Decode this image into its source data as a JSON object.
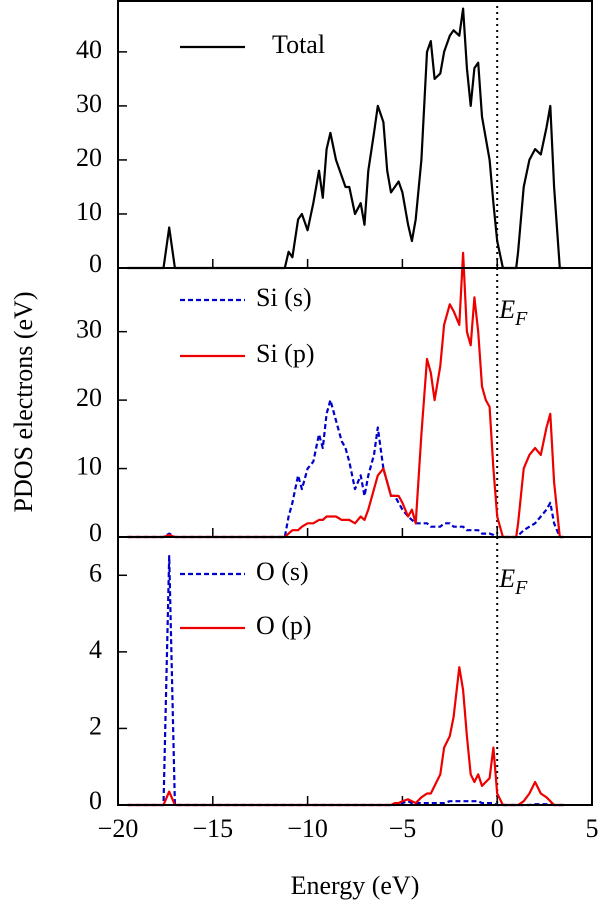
{
  "chart_data": [
    {
      "type": "line",
      "ylabel": "PDOS electrons (eV)",
      "vline": 0,
      "ylim": [
        0,
        49.6
      ],
      "yticks": [
        0,
        10,
        20,
        30,
        40
      ],
      "x": [
        -19.5,
        -17.6,
        -17.3,
        -17.0,
        -11.2,
        -11.0,
        -10.8,
        -10.5,
        -10.3,
        -10.0,
        -9.7,
        -9.4,
        -9.2,
        -9.0,
        -8.8,
        -8.5,
        -8.2,
        -8.0,
        -7.8,
        -7.5,
        -7.2,
        -7.0,
        -6.8,
        -6.5,
        -6.3,
        -6.0,
        -5.8,
        -5.6,
        -5.4,
        -5.2,
        -5.0,
        -4.7,
        -4.5,
        -4.3,
        -4.0,
        -3.7,
        -3.5,
        -3.3,
        -3.0,
        -2.8,
        -2.5,
        -2.3,
        -2.0,
        -1.8,
        -1.6,
        -1.4,
        -1.2,
        -1.0,
        -0.8,
        -0.6,
        -0.4,
        -0.2,
        0.0,
        0.3,
        1.0,
        1.1,
        1.4,
        1.7,
        2.0,
        2.3,
        2.6,
        2.8,
        3.0,
        3.3,
        3.5
      ],
      "series": [
        {
          "name": "Total",
          "color": "#000000",
          "linestyle": "solid",
          "values": [
            0,
            0,
            7.5,
            0,
            0,
            3,
            2,
            9,
            10,
            7,
            12,
            18,
            13,
            22,
            25,
            20,
            17,
            15,
            15,
            10,
            12,
            8,
            18,
            25,
            30,
            27,
            18,
            14,
            15,
            16,
            14,
            8,
            5,
            9,
            20,
            40,
            42,
            35,
            36,
            40,
            43,
            44,
            43,
            48,
            37,
            30,
            37,
            38,
            28,
            24,
            20,
            12,
            5,
            0,
            0,
            3,
            15,
            20,
            22,
            21,
            26,
            30,
            15,
            0,
            0
          ]
        }
      ]
    },
    {
      "type": "line",
      "vline": 0,
      "annotations": [
        {
          "text": "E",
          "subscript": "F"
        }
      ],
      "ylim": [
        0,
        39.3
      ],
      "yticks": [
        0,
        10,
        20,
        30
      ],
      "x": [
        -19.5,
        -17.6,
        -17.3,
        -17.0,
        -11.2,
        -11.0,
        -10.8,
        -10.5,
        -10.3,
        -10.0,
        -9.7,
        -9.4,
        -9.2,
        -9.0,
        -8.8,
        -8.5,
        -8.2,
        -8.0,
        -7.8,
        -7.5,
        -7.2,
        -7.0,
        -6.8,
        -6.5,
        -6.3,
        -6.0,
        -5.8,
        -5.6,
        -5.4,
        -5.2,
        -5.0,
        -4.7,
        -4.5,
        -4.3,
        -4.0,
        -3.7,
        -3.5,
        -3.3,
        -3.0,
        -2.8,
        -2.5,
        -2.3,
        -2.0,
        -1.8,
        -1.6,
        -1.4,
        -1.2,
        -1.0,
        -0.8,
        -0.6,
        -0.4,
        -0.2,
        0.0,
        0.3,
        1.0,
        1.1,
        1.4,
        1.7,
        2.0,
        2.3,
        2.6,
        2.8,
        3.0,
        3.3,
        3.5
      ],
      "series": [
        {
          "name": "Si (s)",
          "color": "#0000cc",
          "linestyle": "dashed",
          "values": [
            0,
            0,
            0.5,
            0,
            0,
            3,
            5,
            9,
            7,
            10,
            11,
            15,
            13,
            18,
            20,
            17,
            14,
            13,
            11,
            7,
            9,
            6,
            9,
            12,
            16,
            10,
            8,
            6,
            6,
            5,
            4,
            3,
            2.5,
            2,
            2,
            2,
            1.5,
            1.5,
            1.5,
            2,
            2,
            1.5,
            1.5,
            1.5,
            1,
            1,
            1,
            1,
            0.5,
            0.5,
            0.5,
            0.3,
            0,
            0,
            0,
            0.2,
            1,
            1.5,
            2,
            3,
            4,
            5,
            2,
            0,
            0
          ]
        },
        {
          "name": "Si (p)",
          "color": "#ee0000",
          "linestyle": "solid",
          "values": [
            0,
            0,
            0.3,
            0,
            0,
            0.5,
            1,
            1,
            1.5,
            2,
            2,
            2.5,
            2.5,
            3,
            3,
            3,
            2.5,
            2.5,
            2.5,
            2,
            3,
            2.5,
            4,
            7,
            9,
            10,
            8,
            6,
            6,
            6,
            5,
            3,
            4,
            2,
            15,
            26,
            24,
            20,
            25,
            31,
            34,
            33,
            31,
            41.5,
            30,
            28,
            35,
            30,
            22,
            20,
            19,
            10,
            3,
            0,
            0,
            2,
            10,
            12,
            13,
            12,
            16,
            18,
            8,
            0,
            0
          ]
        }
      ]
    },
    {
      "type": "line",
      "vline": 0,
      "annotations": [
        {
          "text": "E",
          "subscript": "F"
        }
      ],
      "xlabel": "Energy (eV)",
      "xlim": [
        -20,
        5
      ],
      "xticks": [
        {
          "value": -20,
          "label": "−20"
        },
        {
          "value": -15,
          "label": "−15"
        },
        {
          "value": -10,
          "label": "−10"
        },
        {
          "value": -5,
          "label": "−5"
        },
        0,
        5
      ],
      "ylim": [
        0,
        7.0
      ],
      "yticks": [
        0,
        2,
        4,
        6
      ],
      "x": [
        -19.5,
        -17.6,
        -17.3,
        -17.0,
        -11.2,
        -11.0,
        -10.8,
        -10.5,
        -10.3,
        -10.0,
        -9.7,
        -9.4,
        -9.2,
        -9.0,
        -8.8,
        -8.5,
        -8.2,
        -8.0,
        -7.8,
        -7.5,
        -7.2,
        -7.0,
        -6.8,
        -6.5,
        -6.3,
        -6.0,
        -5.8,
        -5.6,
        -5.4,
        -5.2,
        -5.0,
        -4.7,
        -4.5,
        -4.3,
        -4.0,
        -3.7,
        -3.5,
        -3.3,
        -3.0,
        -2.8,
        -2.5,
        -2.3,
        -2.0,
        -1.8,
        -1.6,
        -1.4,
        -1.2,
        -1.0,
        -0.8,
        -0.6,
        -0.4,
        -0.2,
        0.0,
        0.3,
        1.0,
        1.1,
        1.4,
        1.7,
        2.0,
        2.3,
        2.6,
        2.8,
        3.0,
        3.3,
        3.5
      ],
      "series": [
        {
          "name": "O (s)",
          "color": "#0000cc",
          "linestyle": "dashed",
          "values": [
            0,
            0,
            6.5,
            0,
            0,
            0,
            0,
            0,
            0,
            0,
            0,
            0,
            0,
            0,
            0,
            0,
            0,
            0,
            0,
            0,
            0,
            0,
            0,
            0,
            0,
            0,
            0,
            0,
            0,
            0.05,
            0.05,
            0.1,
            0.05,
            0.05,
            0.05,
            0.05,
            0.05,
            0.05,
            0.05,
            0.05,
            0.1,
            0.1,
            0.1,
            0.1,
            0.1,
            0.1,
            0.1,
            0.1,
            0.05,
            0.05,
            0.05,
            0.05,
            0,
            0,
            0,
            0,
            0,
            0,
            0.02,
            0.02,
            0.02,
            0.02,
            0,
            0,
            0
          ]
        },
        {
          "name": "O (p)",
          "color": "#ee0000",
          "linestyle": "solid",
          "values": [
            0,
            0,
            0.35,
            0,
            0,
            0,
            0,
            0,
            0,
            0,
            0,
            0,
            0,
            0,
            0,
            0,
            0,
            0,
            0,
            0,
            0,
            0,
            0,
            0,
            0,
            0,
            0,
            0,
            0.05,
            0.05,
            0.1,
            0.15,
            0.1,
            0.05,
            0.2,
            0.3,
            0.3,
            0.5,
            0.8,
            1.5,
            1.8,
            2.3,
            3.6,
            3.0,
            1.8,
            0.8,
            0.6,
            0.8,
            0.5,
            0.6,
            0.7,
            1.5,
            0.3,
            0,
            0,
            0,
            0.1,
            0.3,
            0.6,
            0.3,
            0.2,
            0.1,
            0,
            0,
            0
          ]
        }
      ]
    }
  ]
}
